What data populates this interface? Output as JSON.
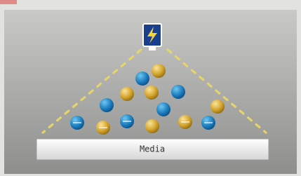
{
  "media_bar": {
    "label": "Media"
  }
}
